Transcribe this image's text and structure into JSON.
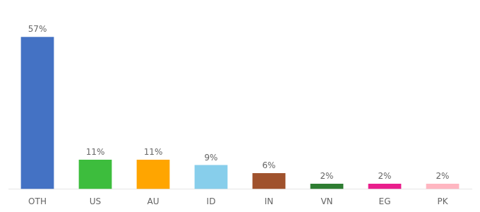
{
  "chart_data": {
    "type": "bar",
    "categories": [
      "OTH",
      "US",
      "AU",
      "ID",
      "IN",
      "VN",
      "EG",
      "PK"
    ],
    "values": [
      57,
      11,
      11,
      9,
      6,
      2,
      2,
      2
    ],
    "value_labels": [
      "57%",
      "11%",
      "11%",
      "9%",
      "6%",
      "2%",
      "2%",
      "2%"
    ],
    "colors": [
      "#4472C4",
      "#3DBD3D",
      "#FFA500",
      "#87CEEB",
      "#A0522D",
      "#2E7D32",
      "#E91E8C",
      "#FFB6C1"
    ],
    "ylim": [
      0,
      65
    ],
    "grid": false,
    "data_labels": true,
    "tick_labels": "x"
  }
}
